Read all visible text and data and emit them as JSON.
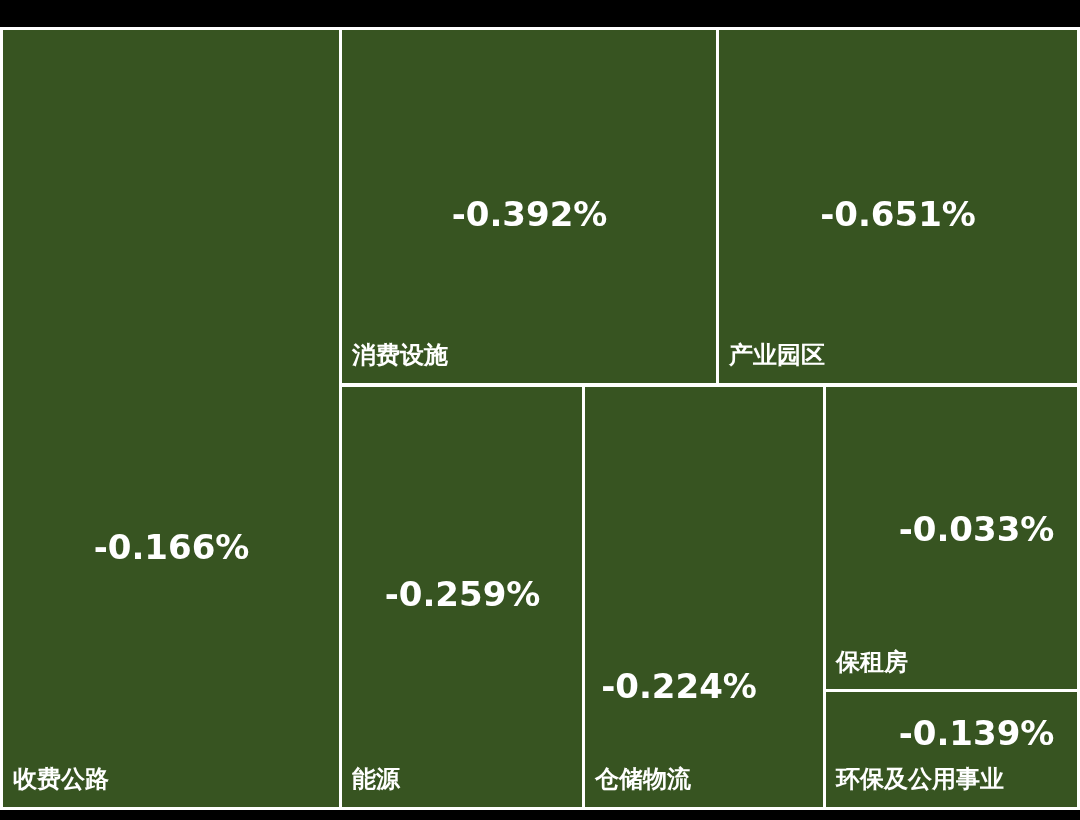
{
  "chart_data": {
    "type": "other",
    "categories": [
      "收费公路",
      "消费设施",
      "产业园区",
      "能源",
      "仓储物流",
      "保租房",
      "环保及公用事业"
    ],
    "values": [
      -0.166,
      -0.392,
      -0.651,
      -0.259,
      -0.224,
      -0.033,
      -0.139
    ],
    "value_labels": [
      "-0.166%",
      "-0.392%",
      "-0.651%",
      "-0.259%",
      "-0.224%",
      "-0.033%",
      "-0.139%"
    ],
    "color": "#375421"
  }
}
